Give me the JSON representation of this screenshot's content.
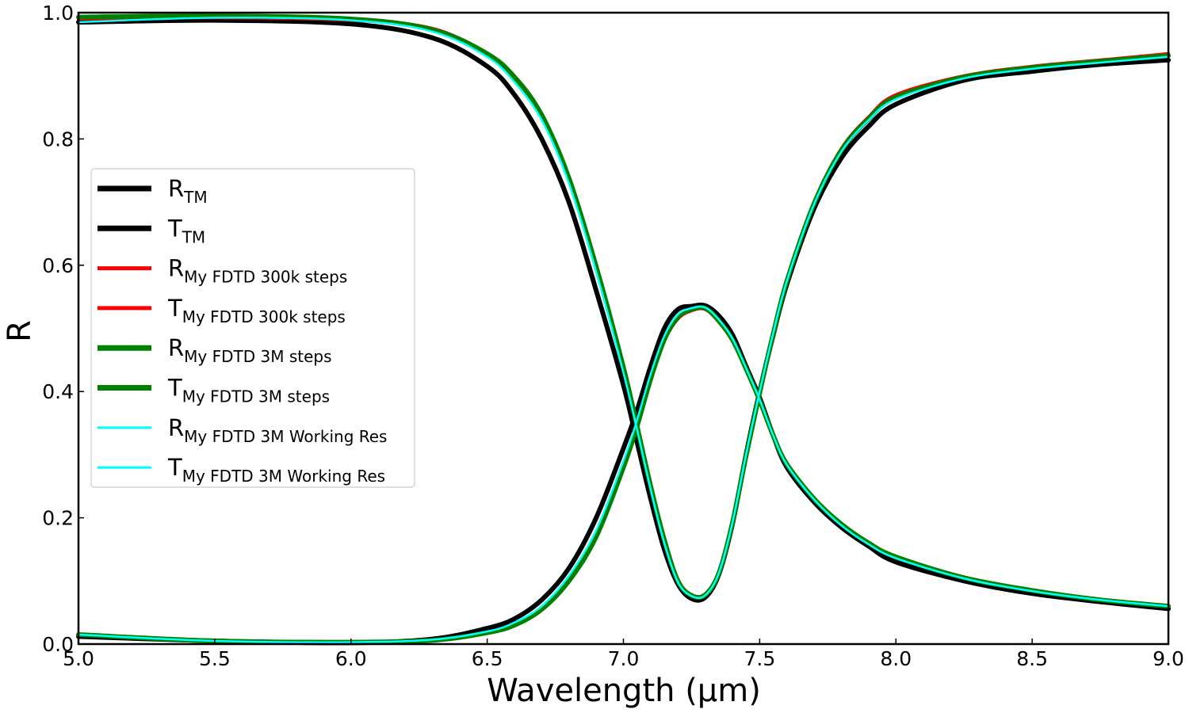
{
  "chart_data": {
    "type": "line",
    "title": "",
    "xlabel": "Wavelength (µm)",
    "ylabel": "R",
    "xlim": [
      5.0,
      9.0
    ],
    "ylim": [
      0.0,
      1.0
    ],
    "xticks": [
      5.0,
      5.5,
      6.0,
      6.5,
      7.0,
      7.5,
      8.0,
      8.5,
      9.0
    ],
    "xtick_labels": [
      "5.0",
      "5.5",
      "6.0",
      "6.5",
      "7.0",
      "7.5",
      "8.0",
      "8.5",
      "9.0"
    ],
    "yticks": [
      0.0,
      0.2,
      0.4,
      0.6,
      0.8,
      1.0
    ],
    "ytick_labels": [
      "0.0",
      "0.2",
      "0.4",
      "0.6",
      "0.8",
      "1.0"
    ],
    "grid": false,
    "legend_position": "center-left",
    "x": [
      5.0,
      5.5,
      6.0,
      6.3,
      6.5,
      6.6,
      6.7,
      6.8,
      6.9,
      7.0,
      7.05,
      7.1,
      7.15,
      7.2,
      7.25,
      7.3,
      7.35,
      7.4,
      7.45,
      7.5,
      7.55,
      7.6,
      7.7,
      7.8,
      7.9,
      8.0,
      8.25,
      8.5,
      8.75,
      9.0
    ],
    "series": [
      {
        "name": "R",
        "subscript": "TM",
        "color": "#000000",
        "style": "thick",
        "values": [
          0.985,
          0.988,
          0.982,
          0.96,
          0.915,
          0.87,
          0.8,
          0.7,
          0.56,
          0.41,
          0.32,
          0.23,
          0.15,
          0.095,
          0.072,
          0.074,
          0.11,
          0.19,
          0.3,
          0.4,
          0.49,
          0.57,
          0.69,
          0.77,
          0.82,
          0.855,
          0.893,
          0.907,
          0.918,
          0.925
        ]
      },
      {
        "name": "T",
        "subscript": "TM",
        "color": "#000000",
        "style": "thick",
        "values": [
          0.012,
          0.005,
          0.002,
          0.008,
          0.025,
          0.04,
          0.07,
          0.12,
          0.2,
          0.31,
          0.37,
          0.44,
          0.5,
          0.53,
          0.535,
          0.536,
          0.52,
          0.49,
          0.44,
          0.39,
          0.33,
          0.28,
          0.225,
          0.185,
          0.155,
          0.13,
          0.1,
          0.08,
          0.067,
          0.056
        ]
      },
      {
        "name": "R",
        "subscript": "My FDTD 300k steps",
        "color": "#ff0000",
        "style": "medium",
        "values": [
          0.99,
          0.992,
          0.988,
          0.975,
          0.935,
          0.9,
          0.84,
          0.74,
          0.6,
          0.44,
          0.345,
          0.25,
          0.165,
          0.1,
          0.077,
          0.078,
          0.112,
          0.19,
          0.295,
          0.395,
          0.49,
          0.575,
          0.7,
          0.785,
          0.835,
          0.87,
          0.9,
          0.915,
          0.925,
          0.935
        ]
      },
      {
        "name": "T",
        "subscript": "My FDTD 300k steps",
        "color": "#ff0000",
        "style": "medium",
        "values": [
          0.015,
          0.005,
          0.003,
          0.006,
          0.018,
          0.03,
          0.055,
          0.1,
          0.17,
          0.28,
          0.345,
          0.42,
          0.48,
          0.515,
          0.528,
          0.53,
          0.51,
          0.48,
          0.435,
          0.385,
          0.33,
          0.285,
          0.23,
          0.19,
          0.16,
          0.138,
          0.105,
          0.085,
          0.07,
          0.06
        ]
      },
      {
        "name": "R",
        "subscript": "My FDTD 3M steps",
        "color": "#008000",
        "style": "thick",
        "values": [
          0.993,
          0.995,
          0.99,
          0.973,
          0.935,
          0.898,
          0.838,
          0.738,
          0.598,
          0.438,
          0.345,
          0.25,
          0.165,
          0.1,
          0.077,
          0.078,
          0.112,
          0.192,
          0.298,
          0.398,
          0.492,
          0.575,
          0.698,
          0.782,
          0.832,
          0.866,
          0.898,
          0.913,
          0.923,
          0.932
        ]
      },
      {
        "name": "T",
        "subscript": "My FDTD 3M steps",
        "color": "#008000",
        "style": "thick",
        "values": [
          0.015,
          0.005,
          0.003,
          0.006,
          0.018,
          0.03,
          0.055,
          0.1,
          0.17,
          0.28,
          0.345,
          0.42,
          0.482,
          0.518,
          0.53,
          0.532,
          0.512,
          0.482,
          0.436,
          0.386,
          0.33,
          0.285,
          0.23,
          0.19,
          0.16,
          0.138,
          0.105,
          0.085,
          0.07,
          0.06
        ]
      },
      {
        "name": "R",
        "subscript": "My FDTD 3M Working Res",
        "color": "#00ffff",
        "style": "thin",
        "values": [
          0.985,
          0.992,
          0.988,
          0.97,
          0.93,
          0.89,
          0.83,
          0.73,
          0.59,
          0.43,
          0.34,
          0.245,
          0.16,
          0.098,
          0.076,
          0.077,
          0.112,
          0.192,
          0.3,
          0.4,
          0.493,
          0.575,
          0.697,
          0.78,
          0.83,
          0.863,
          0.896,
          0.911,
          0.921,
          0.93
        ]
      },
      {
        "name": "T",
        "subscript": "My FDTD 3M Working Res",
        "color": "#00ffff",
        "style": "thin",
        "values": [
          0.015,
          0.005,
          0.003,
          0.007,
          0.02,
          0.034,
          0.06,
          0.108,
          0.18,
          0.29,
          0.355,
          0.428,
          0.488,
          0.522,
          0.532,
          0.533,
          0.514,
          0.484,
          0.437,
          0.387,
          0.33,
          0.284,
          0.229,
          0.188,
          0.158,
          0.136,
          0.104,
          0.084,
          0.07,
          0.06
        ]
      }
    ]
  }
}
